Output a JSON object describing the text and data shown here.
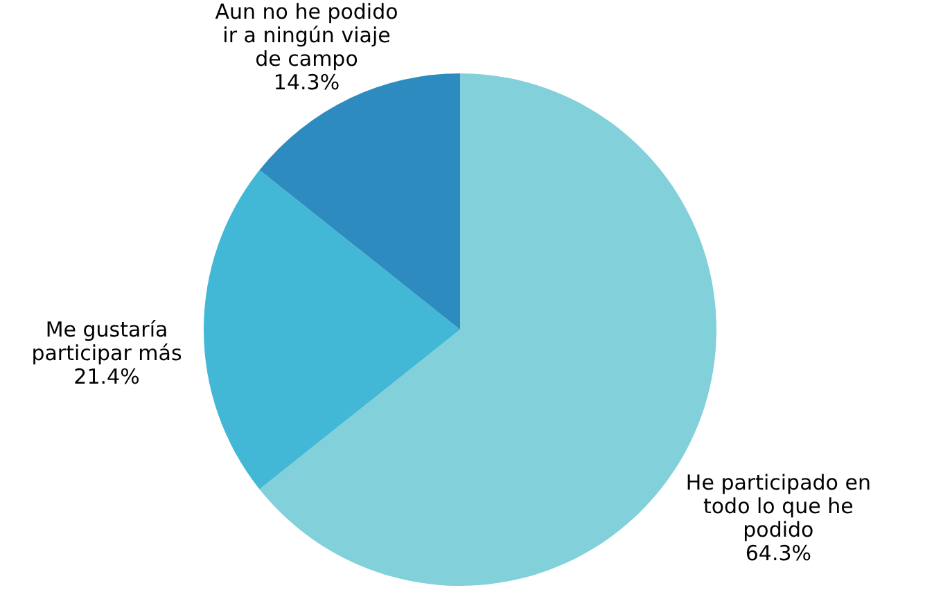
{
  "chart_data": {
    "type": "pie",
    "categories": [
      "He participado en todo lo que he podido",
      "Me gustaría participar más",
      "Aun no he podido ir a ningún viaje de campo"
    ],
    "values": [
      64.3,
      21.4,
      14.3
    ],
    "colors": [
      "#82d0d9",
      "#42b8d6",
      "#2e8bbf"
    ],
    "value_labels": [
      "64.3%",
      "21.4%",
      "14.3%"
    ]
  }
}
